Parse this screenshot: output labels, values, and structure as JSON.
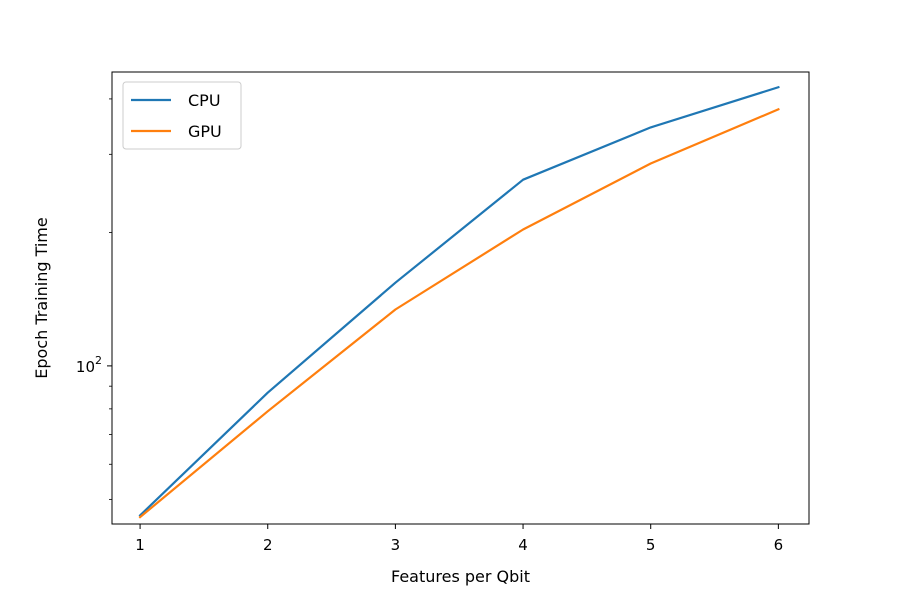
{
  "chart_data": {
    "type": "line",
    "title": "",
    "xlabel": "Features per Qbit",
    "ylabel": "Epoch Training Time",
    "x": [
      1,
      2,
      3,
      4,
      5,
      6
    ],
    "yscale": "log",
    "xlim": [
      0.78,
      6.24
    ],
    "ylim": [
      44,
      460
    ],
    "y_tick_label": {
      "base": "10",
      "exp": "2",
      "value": 100
    },
    "series": [
      {
        "name": "CPU",
        "color": "#1f77b4",
        "values": [
          46,
          87,
          154,
          263,
          345,
          425
        ]
      },
      {
        "name": "GPU",
        "color": "#ff7f0e",
        "values": [
          45.6,
          79,
          134,
          203,
          286,
          379
        ]
      }
    ],
    "legend": "top-left",
    "grid": false
  }
}
